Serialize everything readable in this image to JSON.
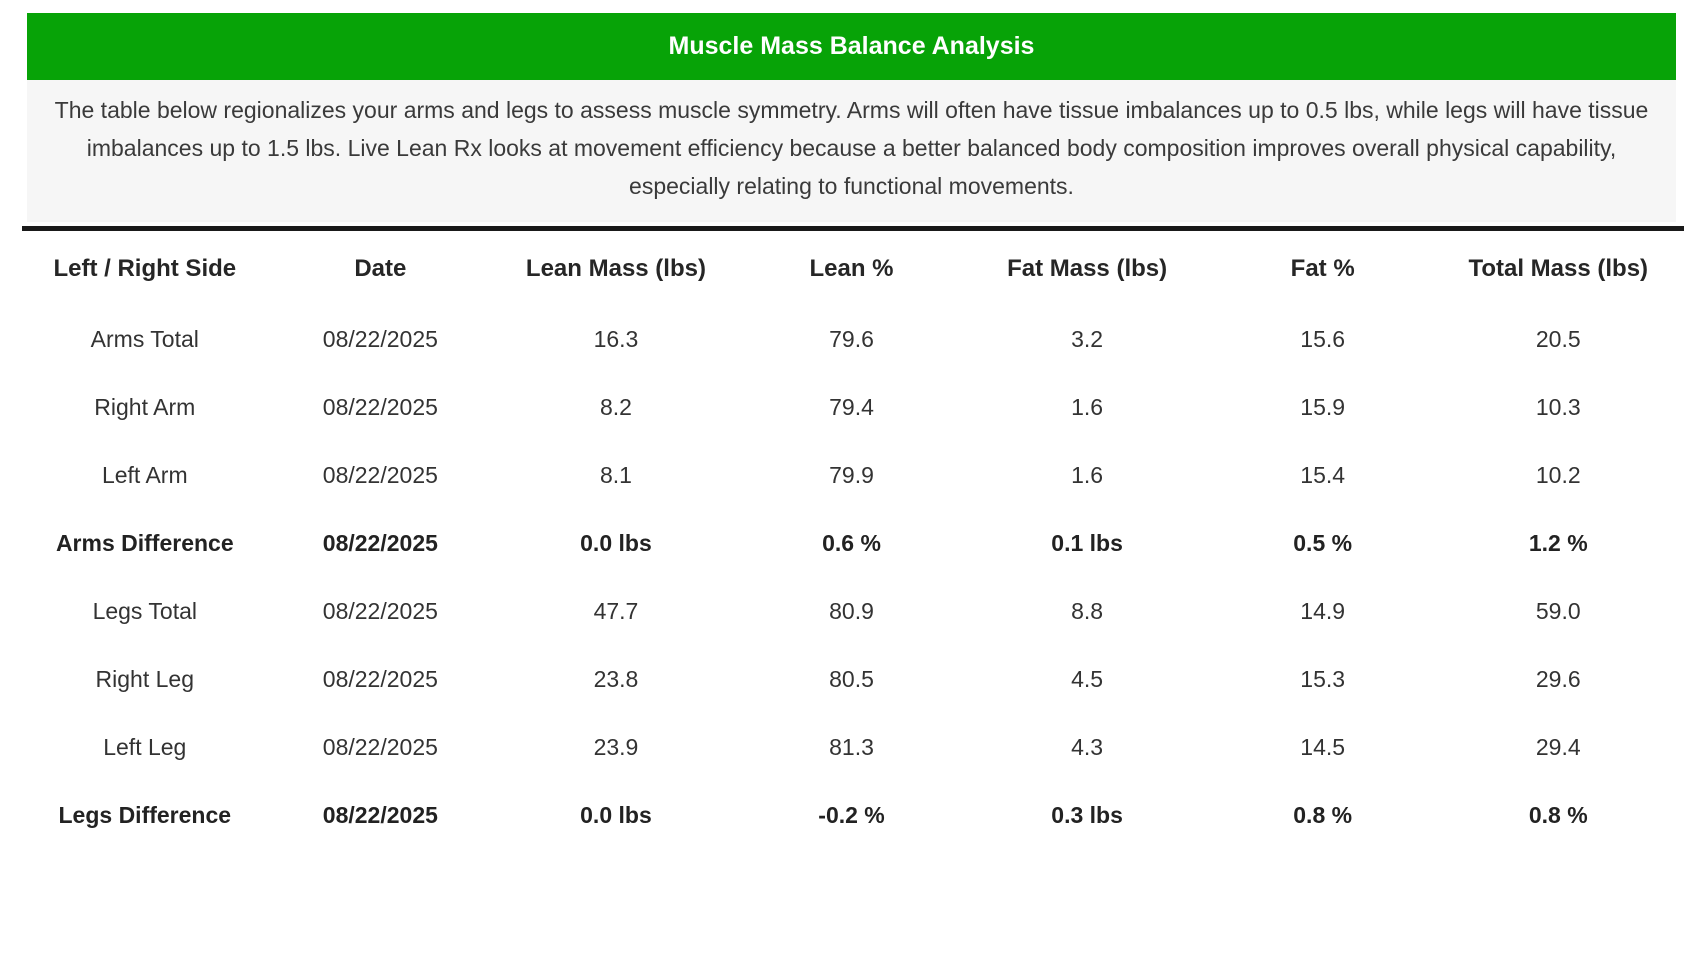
{
  "page": {
    "title": "Muscle Mass Balance Analysis",
    "description": "The table below regionalizes your arms and legs to assess muscle symmetry. Arms will often have tissue imbalances up to 0.5 lbs, while legs will have tissue imbalances up to 1.5 lbs. Live Lean Rx looks at movement efficiency because a better balanced body composition improves overall physical capability, especially relating to functional movements.",
    "accent_color": "#07a307",
    "divider_color": "#1a1a1a",
    "description_bg_color": "#f6f6f6"
  },
  "table": {
    "columns": [
      "Left / Right Side",
      "Date",
      "Lean Mass (lbs)",
      "Lean %",
      "Fat Mass (lbs)",
      "Fat %",
      "Total Mass (lbs)"
    ],
    "rows": [
      {
        "bold": false,
        "cells": [
          "Arms Total",
          "08/22/2025",
          "16.3",
          "79.6",
          "3.2",
          "15.6",
          "20.5"
        ]
      },
      {
        "bold": false,
        "cells": [
          "Right Arm",
          "08/22/2025",
          "8.2",
          "79.4",
          "1.6",
          "15.9",
          "10.3"
        ]
      },
      {
        "bold": false,
        "cells": [
          "Left Arm",
          "08/22/2025",
          "8.1",
          "79.9",
          "1.6",
          "15.4",
          "10.2"
        ]
      },
      {
        "bold": true,
        "cells": [
          "Arms Difference",
          "08/22/2025",
          "0.0 lbs",
          "0.6 %",
          "0.1 lbs",
          "0.5 %",
          "1.2 %"
        ]
      },
      {
        "bold": false,
        "cells": [
          "Legs Total",
          "08/22/2025",
          "47.7",
          "80.9",
          "8.8",
          "14.9",
          "59.0"
        ]
      },
      {
        "bold": false,
        "cells": [
          "Right Leg",
          "08/22/2025",
          "23.8",
          "80.5",
          "4.5",
          "15.3",
          "29.6"
        ]
      },
      {
        "bold": false,
        "cells": [
          "Left Leg",
          "08/22/2025",
          "23.9",
          "81.3",
          "4.3",
          "14.5",
          "29.4"
        ]
      },
      {
        "bold": true,
        "cells": [
          "Legs Difference",
          "08/22/2025",
          "0.0 lbs",
          "-0.2 %",
          "0.3 lbs",
          "0.8 %",
          "0.8 %"
        ]
      }
    ]
  }
}
